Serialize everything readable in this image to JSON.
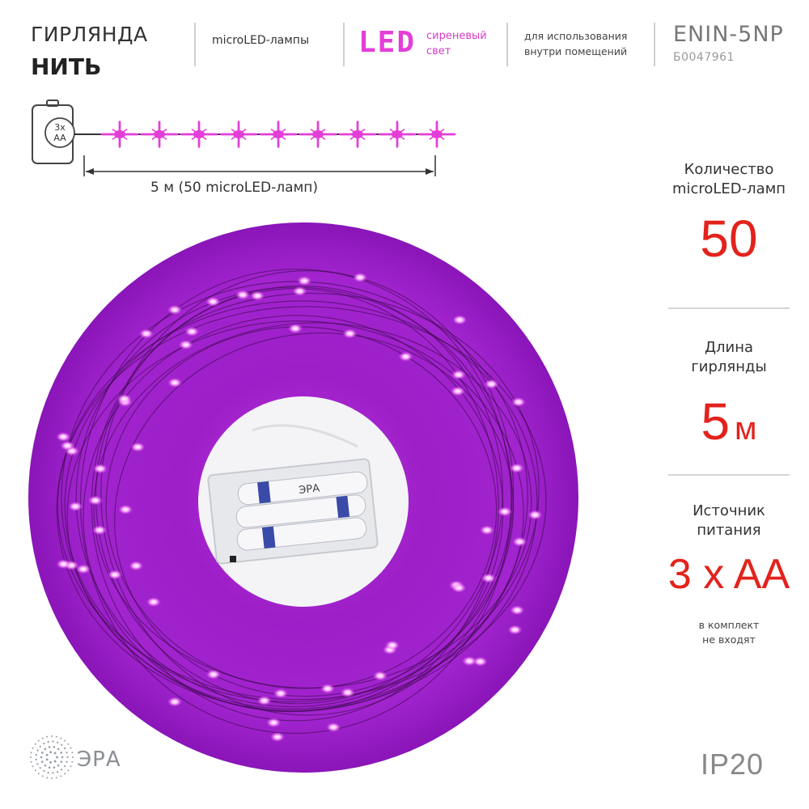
{
  "header": {
    "title_line1": "ГИРЛЯНДА",
    "title_line2": "НИТЬ",
    "feature_lamp_type": "microLED-лампы",
    "led_word": "LED",
    "led_color_line1": "сиреневый",
    "led_color_line2": "свет",
    "usage_line1": "для использования",
    "usage_line2": "внутри помещений",
    "model": "ENIN-5NP",
    "article": "Б0047961"
  },
  "diagram": {
    "battery_label_line1": "3x",
    "battery_label_line2": "AA",
    "length_label": "5 м (50 microLED-ламп)",
    "led_count_drawn": 9,
    "led_color": "#e33fd8"
  },
  "specs": [
    {
      "label_line1": "Количество",
      "label_line2": "microLED-ламп",
      "value": "50",
      "unit": ""
    },
    {
      "label_line1": "Длина",
      "label_line2": "гирлянды",
      "value": "5",
      "unit": "м"
    },
    {
      "label_line1": "Источник",
      "label_line2": "питания",
      "value": "3 x AA",
      "unit": ""
    }
  ],
  "note": {
    "line1": "в комплект",
    "line2": "не входят"
  },
  "footer": {
    "brand": "ЭРА",
    "ip_rating": "IP20"
  },
  "colors": {
    "accent_red": "#e3221c",
    "led_pink": "#e33fd8",
    "photo_purple": "#a21fd0"
  },
  "photo": {
    "battery_box_brand": "ЭРА"
  }
}
